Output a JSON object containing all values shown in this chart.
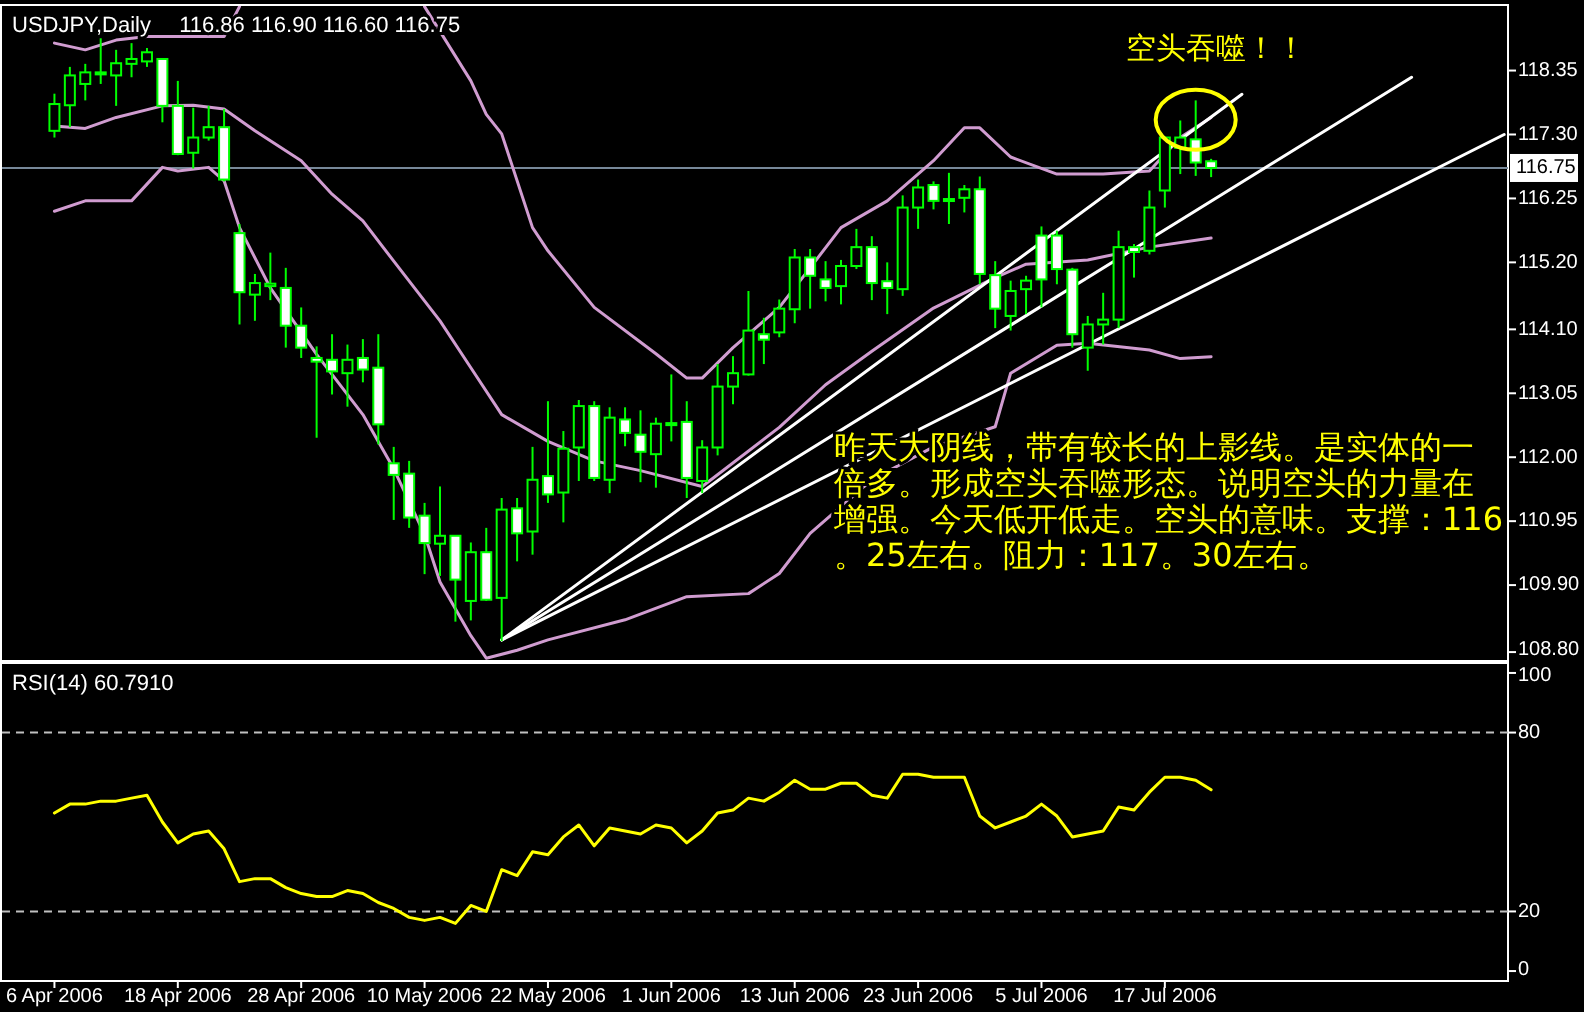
{
  "chart_data": [
    {
      "type": "candlestick",
      "title": "USDJPY,Daily",
      "subtitle": "116.86 116.90 116.60 116.75",
      "color": "#00ff00",
      "categories": [
        null,
        null,
        null,
        null,
        null,
        null,
        null,
        null,
        null,
        null,
        null,
        null,
        null,
        null,
        null,
        null,
        null,
        null,
        null,
        null,
        null,
        null,
        null,
        null,
        null,
        null,
        null,
        null,
        null,
        null,
        null,
        null,
        null,
        null,
        null,
        null,
        null,
        null,
        null,
        null,
        null,
        null,
        null,
        null,
        null,
        null,
        null,
        null,
        null,
        null,
        null,
        null,
        null,
        null,
        null,
        null,
        null,
        null,
        null,
        null,
        null,
        null,
        null,
        null,
        null,
        null,
        null,
        null,
        null,
        null,
        null,
        null,
        null,
        null,
        null,
        null,
        null,
        null,
        null,
        null,
        null,
        null,
        null,
        null,
        null,
        null,
        null,
        null,
        null,
        null,
        null,
        null,
        null,
        null,
        null
      ],
      "ohlc": [
        [
          117.36,
          117.97,
          117.25,
          117.8
        ],
        [
          117.78,
          118.41,
          117.42,
          118.27
        ],
        [
          118.13,
          118.46,
          117.86,
          118.32
        ],
        [
          118.29,
          118.88,
          118.13,
          118.32
        ],
        [
          118.27,
          118.69,
          117.77,
          118.47
        ],
        [
          118.46,
          118.8,
          118.24,
          118.54
        ],
        [
          118.5,
          118.72,
          118.41,
          118.65
        ],
        [
          118.54,
          118.55,
          117.5,
          117.77
        ],
        [
          117.77,
          118.18,
          116.96,
          116.98
        ],
        [
          117.0,
          117.74,
          116.74,
          117.25
        ],
        [
          117.25,
          117.77,
          117.2,
          117.42
        ],
        [
          117.42,
          117.72,
          116.53,
          116.56
        ],
        [
          115.68,
          115.83,
          114.18,
          114.71
        ],
        [
          114.67,
          115.01,
          114.24,
          114.86
        ],
        [
          114.81,
          115.36,
          114.58,
          114.85
        ],
        [
          114.78,
          115.11,
          113.8,
          114.16
        ],
        [
          114.16,
          114.46,
          113.63,
          113.8
        ],
        [
          113.63,
          113.82,
          112.32,
          113.57
        ],
        [
          113.6,
          114.02,
          113.03,
          113.41
        ],
        [
          113.38,
          113.85,
          112.83,
          113.6
        ],
        [
          113.63,
          113.94,
          113.23,
          113.44
        ],
        [
          113.47,
          114.02,
          112.21,
          112.54
        ],
        [
          111.9,
          112.17,
          110.97,
          111.71
        ],
        [
          111.73,
          111.94,
          110.84,
          111.01
        ],
        [
          111.04,
          111.25,
          110.08,
          110.59
        ],
        [
          110.58,
          111.52,
          110.05,
          110.71
        ],
        [
          110.71,
          110.71,
          109.3,
          109.99
        ],
        [
          109.64,
          110.6,
          109.32,
          110.44
        ],
        [
          110.44,
          110.84,
          109.64,
          109.66
        ],
        [
          109.69,
          111.33,
          108.98,
          111.14
        ],
        [
          111.16,
          111.33,
          110.29,
          110.75
        ],
        [
          110.78,
          112.17,
          110.4,
          111.63
        ],
        [
          111.69,
          112.92,
          111.25,
          111.39
        ],
        [
          111.42,
          112.43,
          110.93,
          112.14
        ],
        [
          112.16,
          112.94,
          111.61,
          112.84
        ],
        [
          112.84,
          112.92,
          111.61,
          111.66
        ],
        [
          111.63,
          112.82,
          111.41,
          112.65
        ],
        [
          112.62,
          112.82,
          112.18,
          112.4
        ],
        [
          112.37,
          112.77,
          111.59,
          112.09
        ],
        [
          112.05,
          112.65,
          111.5,
          112.55
        ],
        [
          112.54,
          113.36,
          112.26,
          112.56
        ],
        [
          112.58,
          112.92,
          111.33,
          111.66
        ],
        [
          111.61,
          112.28,
          111.41,
          112.16
        ],
        [
          112.16,
          113.53,
          112.03,
          113.16
        ],
        [
          113.16,
          113.66,
          112.87,
          113.38
        ],
        [
          113.36,
          114.73,
          113.34,
          114.08
        ],
        [
          114.02,
          114.29,
          113.53,
          113.93
        ],
        [
          114.05,
          114.59,
          113.97,
          114.44
        ],
        [
          114.43,
          115.42,
          114.2,
          115.28
        ],
        [
          115.28,
          115.42,
          114.44,
          114.98
        ],
        [
          114.92,
          115.22,
          114.56,
          114.78
        ],
        [
          114.81,
          115.24,
          114.51,
          115.14
        ],
        [
          115.14,
          115.75,
          115.09,
          115.45
        ],
        [
          115.45,
          115.63,
          114.58,
          114.86
        ],
        [
          114.89,
          115.2,
          114.35,
          114.78
        ],
        [
          114.76,
          116.3,
          114.65,
          116.1
        ],
        [
          116.1,
          116.56,
          115.75,
          116.43
        ],
        [
          116.47,
          116.53,
          116.07,
          116.21
        ],
        [
          116.24,
          116.67,
          115.83,
          116.21
        ],
        [
          116.26,
          116.47,
          116.02,
          116.4
        ],
        [
          116.4,
          116.61,
          114.84,
          115.01
        ],
        [
          114.99,
          115.22,
          114.12,
          114.44
        ],
        [
          114.32,
          114.9,
          114.08,
          114.73
        ],
        [
          114.76,
          114.98,
          114.35,
          114.9
        ],
        [
          115.64,
          115.79,
          114.46,
          114.92
        ],
        [
          115.64,
          115.72,
          114.84,
          115.09
        ],
        [
          115.08,
          115.11,
          113.8,
          114.02
        ],
        [
          113.8,
          114.32,
          113.42,
          114.18
        ],
        [
          114.18,
          114.7,
          113.85,
          114.26
        ],
        [
          114.26,
          115.72,
          114.12,
          115.45
        ],
        [
          115.45,
          115.5,
          114.95,
          115.37
        ],
        [
          115.39,
          116.38,
          115.33,
          116.1
        ],
        [
          116.38,
          117.25,
          116.1,
          117.25
        ],
        [
          117.08,
          117.53,
          116.65,
          117.25
        ],
        [
          117.22,
          117.86,
          116.62,
          116.84
        ],
        [
          116.86,
          116.9,
          116.6,
          116.75
        ],
        null,
        null,
        null,
        null,
        null,
        null,
        null,
        null,
        null,
        null,
        null,
        null,
        null,
        null,
        null,
        null,
        null,
        null,
        null
      ],
      "series": [
        {
          "type": "line",
          "color": "#d09cd0",
          "values": [
            117.44,
            null,
            117.4,
            null,
            117.58,
            null,
            null,
            117.77,
            null,
            117.78,
            null,
            117.72,
            null,
            117.36,
            null,
            null,
            116.87,
            null,
            116.32,
            null,
            115.88,
            null,
            115.22,
            null,
            null,
            114.24,
            null,
            113.47,
            null,
            112.7,
            null,
            null,
            112.26,
            null,
            null,
            111.94,
            null,
            null,
            111.78,
            null,
            null,
            null,
            111.52,
            null,
            null,
            null,
            null,
            112.49,
            null,
            null,
            113.19,
            null,
            null,
            113.74,
            null,
            null,
            null,
            114.45,
            null,
            null,
            null,
            114.95,
            null,
            115.17,
            null,
            null,
            null,
            115.24,
            null,
            null,
            null,
            115.45,
            null,
            null,
            null,
            115.6,
            null,
            null,
            null,
            null,
            null,
            null,
            null,
            null,
            null,
            null,
            null,
            null,
            null,
            null,
            null,
            null,
            null,
            null,
            null
          ]
        },
        {
          "type": "line",
          "color": "#d09cd0",
          "values": [
            118.8,
            null,
            118.69,
            null,
            118.85,
            null,
            118.91,
            null,
            null,
            null,
            null,
            118.91,
            119.4,
            null,
            null,
            null,
            null,
            null,
            null,
            null,
            null,
            null,
            null,
            null,
            null,
            null,
            null,
            null,
            null,
            null,
            null,
            null,
            null,
            null,
            null,
            null,
            null,
            null,
            null,
            null,
            null,
            null,
            null,
            null,
            null,
            null,
            null,
            null,
            null,
            null,
            null,
            null,
            null,
            null,
            null,
            null,
            null,
            null,
            null,
            null,
            null,
            null,
            null,
            null,
            null,
            null,
            null,
            null,
            null,
            null,
            null,
            null,
            null,
            null,
            null,
            null,
            null,
            null,
            null,
            null,
            null,
            null,
            null,
            null,
            null,
            null,
            null,
            null,
            null,
            null,
            null,
            null,
            null,
            null,
            null
          ]
        },
        {
          "type": "line",
          "color": "#d09cd0",
          "values": [
            null,
            null,
            null,
            null,
            null,
            null,
            null,
            null,
            null,
            null,
            null,
            null,
            null,
            null,
            null,
            null,
            null,
            null,
            null,
            null,
            null,
            null,
            null,
            null,
            119.4,
            null,
            null,
            118.18,
            117.63,
            117.31,
            null,
            115.77,
            115.39,
            null,
            null,
            114.46,
            null,
            null,
            null,
            113.7,
            null,
            113.3,
            113.3,
            null,
            113.8,
            null,
            null,
            114.46,
            null,
            115.11,
            null,
            115.77,
            null,
            null,
            116.21,
            null,
            null,
            116.87,
            null,
            117.41,
            117.41,
            null,
            116.93,
            null,
            null,
            116.65,
            null,
            null,
            116.65,
            null,
            null,
            116.7,
            null,
            117.25,
            null,
            117.58,
            null,
            null,
            null,
            null,
            null,
            null,
            null,
            null,
            null,
            null,
            null,
            null,
            null,
            null,
            null,
            null,
            null,
            null,
            null
          ]
        },
        {
          "type": "line",
          "color": "#d09cd0",
          "values": [
            116.04,
            null,
            116.21,
            null,
            null,
            116.21,
            null,
            116.76,
            116.7,
            null,
            116.76,
            116.54,
            115.77,
            null,
            114.78,
            null,
            null,
            113.69,
            null,
            null,
            112.7,
            null,
            111.81,
            null,
            110.73,
            109.95,
            null,
            109.07,
            108.7,
            null,
            108.83,
            null,
            109.0,
            null,
            null,
            null,
            null,
            109.33,
            null,
            null,
            null,
            109.71,
            null,
            null,
            null,
            109.76,
            null,
            110.09,
            null,
            110.75,
            null,
            111.19,
            null,
            111.63,
            null,
            null,
            null,
            112.17,
            null,
            null,
            null,
            112.5,
            113.38,
            null,
            null,
            113.84,
            null,
            113.87,
            null,
            null,
            null,
            113.76,
            null,
            113.62,
            null,
            113.65,
            null,
            null,
            null,
            null,
            null,
            null,
            null,
            null,
            null,
            null,
            null,
            null,
            null,
            null,
            null,
            null,
            null,
            null,
            null
          ]
        },
        {
          "type": "line",
          "color": "#ffffff",
          "values": [
            null,
            null,
            null,
            null,
            null,
            null,
            null,
            null,
            null,
            null,
            null,
            null,
            null,
            null,
            null,
            null,
            null,
            null,
            null,
            null,
            null,
            null,
            null,
            null,
            null,
            null,
            null,
            null,
            null,
            109.0,
            null,
            null,
            null,
            null,
            null,
            null,
            null,
            null,
            null,
            null,
            null,
            null,
            null,
            null,
            null,
            null,
            null,
            null,
            null,
            null,
            null,
            null,
            null,
            null,
            null,
            null,
            null,
            null,
            null,
            null,
            null,
            null,
            null,
            null,
            null,
            null,
            null,
            null,
            null,
            null,
            null,
            null,
            null,
            null,
            null,
            null,
            null,
            117.96,
            null,
            null,
            null,
            null,
            null,
            null,
            null,
            null,
            null,
            null,
            null,
            null,
            null,
            null,
            null,
            null,
            null
          ]
        },
        {
          "type": "line",
          "color": "#ffffff",
          "values": [
            null,
            null,
            null,
            null,
            null,
            null,
            null,
            null,
            null,
            null,
            null,
            null,
            null,
            null,
            null,
            null,
            null,
            null,
            null,
            null,
            null,
            null,
            null,
            null,
            null,
            null,
            null,
            null,
            null,
            109.0,
            null,
            null,
            null,
            null,
            null,
            null,
            null,
            null,
            null,
            null,
            null,
            null,
            null,
            null,
            null,
            null,
            null,
            null,
            null,
            null,
            null,
            null,
            null,
            null,
            null,
            null,
            null,
            null,
            null,
            null,
            null,
            null,
            null,
            null,
            null,
            null,
            null,
            null,
            null,
            null,
            null,
            null,
            null,
            null,
            null,
            null,
            null,
            null,
            null,
            null,
            null,
            null,
            null,
            null,
            null,
            null,
            null,
            null,
            118.24,
            null,
            null,
            null,
            null,
            null,
            null
          ]
        },
        {
          "type": "line",
          "color": "#ffffff",
          "values": [
            null,
            null,
            null,
            null,
            null,
            null,
            null,
            null,
            null,
            null,
            null,
            null,
            null,
            null,
            null,
            null,
            null,
            null,
            null,
            null,
            null,
            null,
            null,
            null,
            null,
            null,
            null,
            null,
            null,
            109.0,
            null,
            null,
            null,
            null,
            null,
            null,
            null,
            null,
            null,
            null,
            null,
            null,
            null,
            null,
            null,
            null,
            null,
            null,
            null,
            null,
            null,
            null,
            null,
            null,
            null,
            null,
            null,
            null,
            null,
            null,
            null,
            null,
            null,
            null,
            null,
            null,
            null,
            null,
            null,
            null,
            null,
            null,
            null,
            null,
            null,
            null,
            null,
            null,
            null,
            null,
            null,
            null,
            null,
            null,
            null,
            null,
            null,
            null,
            null,
            null,
            null,
            null,
            null,
            null,
            117.3
          ]
        }
      ],
      "ylim": [
        108.67,
        119.41
      ],
      "yticks": [
        118.35,
        {
          "value": 117.3,
          "label": "117.30"
        },
        116.25,
        {
          "value": 115.2,
          "label": "115.20"
        },
        {
          "value": 114.1,
          "label": "114.10"
        },
        113.05,
        {
          "value": 112,
          "label": "112.00"
        },
        110.95,
        {
          "value": 109.9,
          "label": "109.90"
        },
        {
          "value": 108.8,
          "label": "108.80"
        }
      ],
      "ref_lines": [
        {
          "axis": "y",
          "value": 116.75,
          "label": "116.75",
          "color": "#778899"
        }
      ],
      "annotations": [
        "空头吞噬！！",
        "昨天大阴线，带有较长的上影线。是实体的一倍多。形成空头吞噬形态。说明空头的力量在增强。今天低开低走。空头的意味。支撑：116。25左右。阻力：117。30左右。"
      ],
      "tick_labels": "y"
    },
    {
      "type": "line",
      "title": "RSI(14) 60.7910",
      "color": "#ffff00",
      "categories": [
        "6 Apr 2006",
        null,
        null,
        null,
        null,
        null,
        null,
        null,
        "18 Apr 2006",
        null,
        null,
        null,
        null,
        null,
        null,
        null,
        "28 Apr 2006",
        null,
        null,
        null,
        null,
        null,
        null,
        null,
        "10 May 2006",
        null,
        null,
        null,
        null,
        null,
        null,
        null,
        "22 May 2006",
        null,
        null,
        null,
        null,
        null,
        null,
        null,
        "1 Jun 2006",
        null,
        null,
        null,
        null,
        null,
        null,
        null,
        "13 Jun 2006",
        null,
        null,
        null,
        null,
        null,
        null,
        null,
        "23 Jun 2006",
        null,
        null,
        null,
        null,
        null,
        null,
        null,
        "5 Jul 2006",
        null,
        null,
        null,
        null,
        null,
        null,
        null,
        "17 Jul 2006",
        null,
        null,
        null,
        null,
        null,
        null,
        null,
        null,
        null,
        null,
        null,
        null,
        null,
        null,
        null,
        null,
        null,
        null,
        null,
        null,
        null,
        null
      ],
      "values": [
        53,
        56,
        56,
        57,
        57,
        58,
        59,
        50,
        43,
        46,
        47,
        41,
        30,
        31,
        31,
        28,
        26,
        25,
        25,
        27,
        26,
        23,
        21,
        18,
        17,
        18,
        16,
        22,
        20,
        34,
        32,
        40,
        39,
        45,
        49,
        42,
        48,
        47,
        46,
        49,
        48,
        43,
        47,
        53,
        54,
        58,
        57,
        60,
        64,
        61,
        61,
        63,
        63,
        59,
        58,
        66,
        66,
        65,
        65,
        65,
        52,
        48,
        50,
        52,
        56,
        52,
        45,
        46,
        47,
        55,
        54,
        60,
        65,
        65,
        64,
        60.79,
        null,
        null,
        null,
        null,
        null,
        null,
        null,
        null,
        null,
        null,
        null,
        null,
        null,
        null,
        null,
        null,
        null,
        null,
        null
      ],
      "ylim": [
        -3,
        103
      ],
      "yticks": [
        0,
        20,
        80,
        100
      ],
      "ref_lines": [
        {
          "axis": "y",
          "value": 80,
          "color": "#c0c0c0",
          "line_style": "dashed"
        },
        {
          "axis": "y",
          "value": 20,
          "color": "#c0c0c0",
          "line_style": "dashed"
        }
      ]
    }
  ]
}
